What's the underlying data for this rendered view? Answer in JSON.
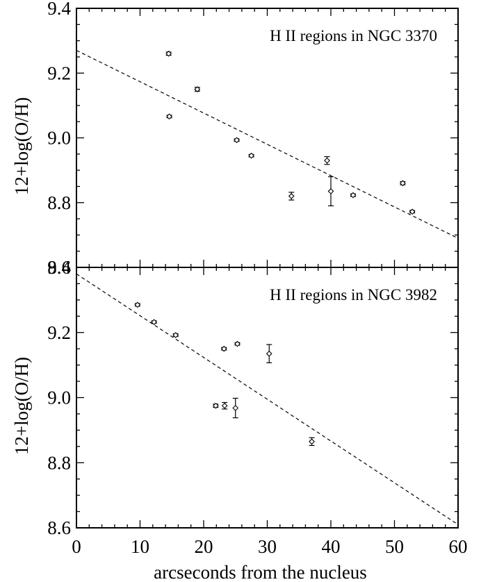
{
  "chart_data": [
    {
      "type": "scatter",
      "annotation": "H II regions in NGC 3370",
      "xlabel": "",
      "ylabel": "12+log(O/H)",
      "xlim": [
        0,
        60
      ],
      "ylim": [
        8.6,
        9.4
      ],
      "yticks": [
        "8.6",
        "8.8",
        "9.0",
        "9.2",
        "9.4"
      ],
      "xticks": [],
      "points": [
        {
          "x": 14.5,
          "y": 9.26,
          "err": 0.005
        },
        {
          "x": 14.6,
          "y": 9.066,
          "err": 0.004
        },
        {
          "x": 19.0,
          "y": 9.15,
          "err": 0.006
        },
        {
          "x": 25.2,
          "y": 8.993,
          "err": 0.004
        },
        {
          "x": 27.5,
          "y": 8.945,
          "err": 0.004
        },
        {
          "x": 33.8,
          "y": 8.82,
          "err": 0.012
        },
        {
          "x": 39.4,
          "y": 8.93,
          "err": 0.012
        },
        {
          "x": 40.0,
          "y": 8.835,
          "err": 0.045
        },
        {
          "x": 43.5,
          "y": 8.823,
          "err": 0.004
        },
        {
          "x": 51.3,
          "y": 8.86,
          "err": 0.005
        },
        {
          "x": 52.8,
          "y": 8.772,
          "err": 0.004
        }
      ],
      "fit_line": {
        "x": [
          0,
          60
        ],
        "y": [
          9.27,
          8.69
        ]
      }
    },
    {
      "type": "scatter",
      "annotation": "H II regions in NGC 3982",
      "xlabel": "arcseconds from the nucleus",
      "ylabel": "12+log(O/H)",
      "xlim": [
        0,
        60
      ],
      "ylim": [
        8.6,
        9.4
      ],
      "yticks": [
        "8.6",
        "8.8",
        "9.0",
        "9.2",
        "9.4"
      ],
      "xticks": [
        "0",
        "10",
        "20",
        "30",
        "40",
        "50",
        "60"
      ],
      "points": [
        {
          "x": 9.6,
          "y": 9.285,
          "err": 0.004
        },
        {
          "x": 12.2,
          "y": 9.232,
          "err": 0.004
        },
        {
          "x": 15.6,
          "y": 9.192,
          "err": 0.004
        },
        {
          "x": 21.9,
          "y": 8.975,
          "err": 0.005
        },
        {
          "x": 23.2,
          "y": 9.15,
          "err": 0.004
        },
        {
          "x": 23.3,
          "y": 8.975,
          "err": 0.01
        },
        {
          "x": 25.0,
          "y": 8.968,
          "err": 0.03
        },
        {
          "x": 25.3,
          "y": 9.165,
          "err": 0.004
        },
        {
          "x": 30.3,
          "y": 9.135,
          "err": 0.028
        },
        {
          "x": 37.0,
          "y": 8.865,
          "err": 0.012
        }
      ],
      "fit_line": {
        "x": [
          0,
          60
        ],
        "y": [
          9.38,
          8.61
        ]
      }
    }
  ]
}
